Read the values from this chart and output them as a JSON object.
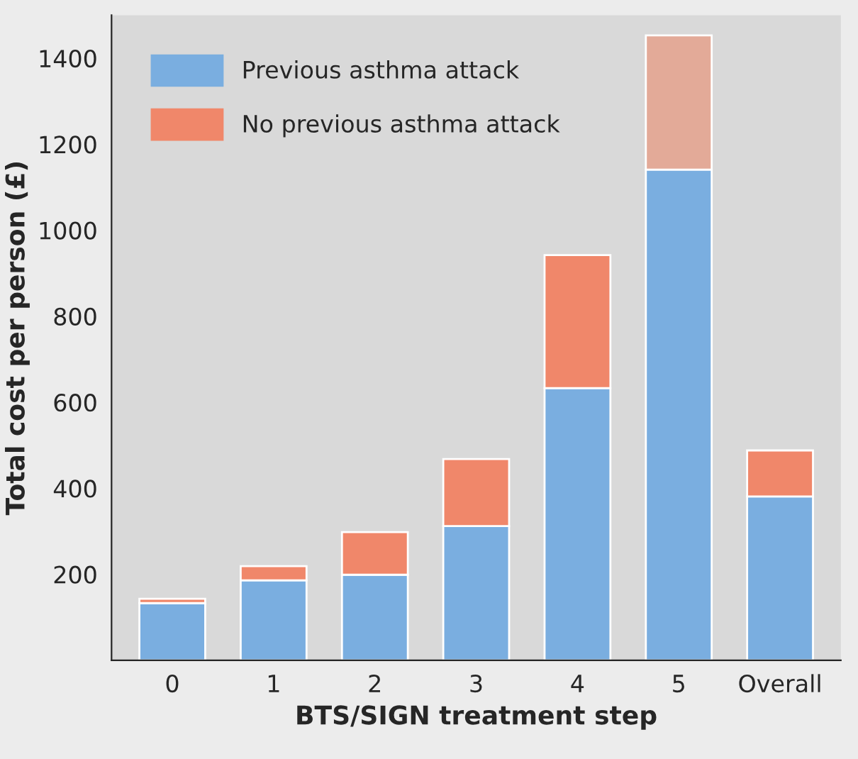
{
  "chart_data": {
    "type": "bar",
    "stacked": true,
    "xlabel": "BTS/SIGN treatment step",
    "ylabel": "Total cost per person (£)",
    "categories": [
      "0",
      "1",
      "2",
      "3",
      "4",
      "5",
      "Overall"
    ],
    "series": [
      {
        "name": "Previous asthma attack",
        "color": "#7aaee0",
        "values": [
          133,
          186,
          199,
          312,
          633,
          1141,
          381
        ]
      },
      {
        "name": "No previous asthma attack",
        "color": "#f0876a",
        "colors": [
          "#f0876a",
          "#f0876a",
          "#f0876a",
          "#f0876a",
          "#f0876a",
          "#e3aa98",
          "#f0876a"
        ],
        "values": [
          10,
          33,
          99,
          156,
          309,
          312,
          107
        ]
      }
    ],
    "ylim": [
      0,
      1500
    ],
    "yticks": [
      200,
      400,
      600,
      800,
      1000,
      1200,
      1400
    ],
    "legend": "top left"
  }
}
